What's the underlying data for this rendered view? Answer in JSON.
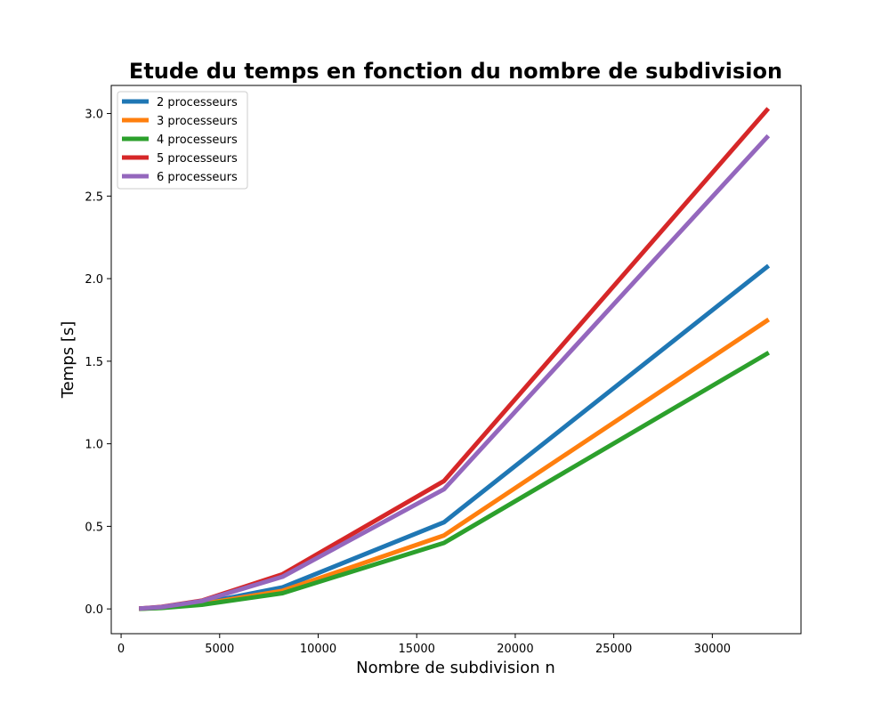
{
  "chart_data": {
    "type": "line",
    "title": "Etude du temps en fonction du nombre de subdivision",
    "xlabel": "Nombre de subdivision n",
    "ylabel": "Temps [s]",
    "xlim": [
      -500,
      34500
    ],
    "ylim": [
      -0.15,
      3.17
    ],
    "xticks": [
      0,
      5000,
      10000,
      15000,
      20000,
      25000,
      30000
    ],
    "yticks": [
      0.0,
      0.5,
      1.0,
      1.5,
      2.0,
      2.5,
      3.0
    ],
    "xtick_labels": [
      "0",
      "5000",
      "10000",
      "15000",
      "20000",
      "25000",
      "30000"
    ],
    "ytick_labels": [
      "0.0",
      "0.5",
      "1.0",
      "1.5",
      "2.0",
      "2.5",
      "3.0"
    ],
    "grid": false,
    "legend_position": "top-left",
    "x": [
      1024,
      2048,
      4096,
      8192,
      16384,
      32768
    ],
    "series": [
      {
        "name": "2 processeurs",
        "color": "#1f77b4",
        "values": [
          0.002,
          0.008,
          0.035,
          0.13,
          0.525,
          2.07
        ]
      },
      {
        "name": "3 processeurs",
        "color": "#ff7f0e",
        "values": [
          0.002,
          0.007,
          0.03,
          0.11,
          0.445,
          1.745
        ]
      },
      {
        "name": "4 processeurs",
        "color": "#2ca02c",
        "values": [
          0.001,
          0.006,
          0.025,
          0.095,
          0.4,
          1.545
        ]
      },
      {
        "name": "5 processeurs",
        "color": "#d62728",
        "values": [
          0.003,
          0.012,
          0.05,
          0.21,
          0.775,
          3.02
        ]
      },
      {
        "name": "6 processeurs",
        "color": "#9467bd",
        "values": [
          0.003,
          0.011,
          0.048,
          0.195,
          0.725,
          2.855
        ]
      }
    ]
  }
}
